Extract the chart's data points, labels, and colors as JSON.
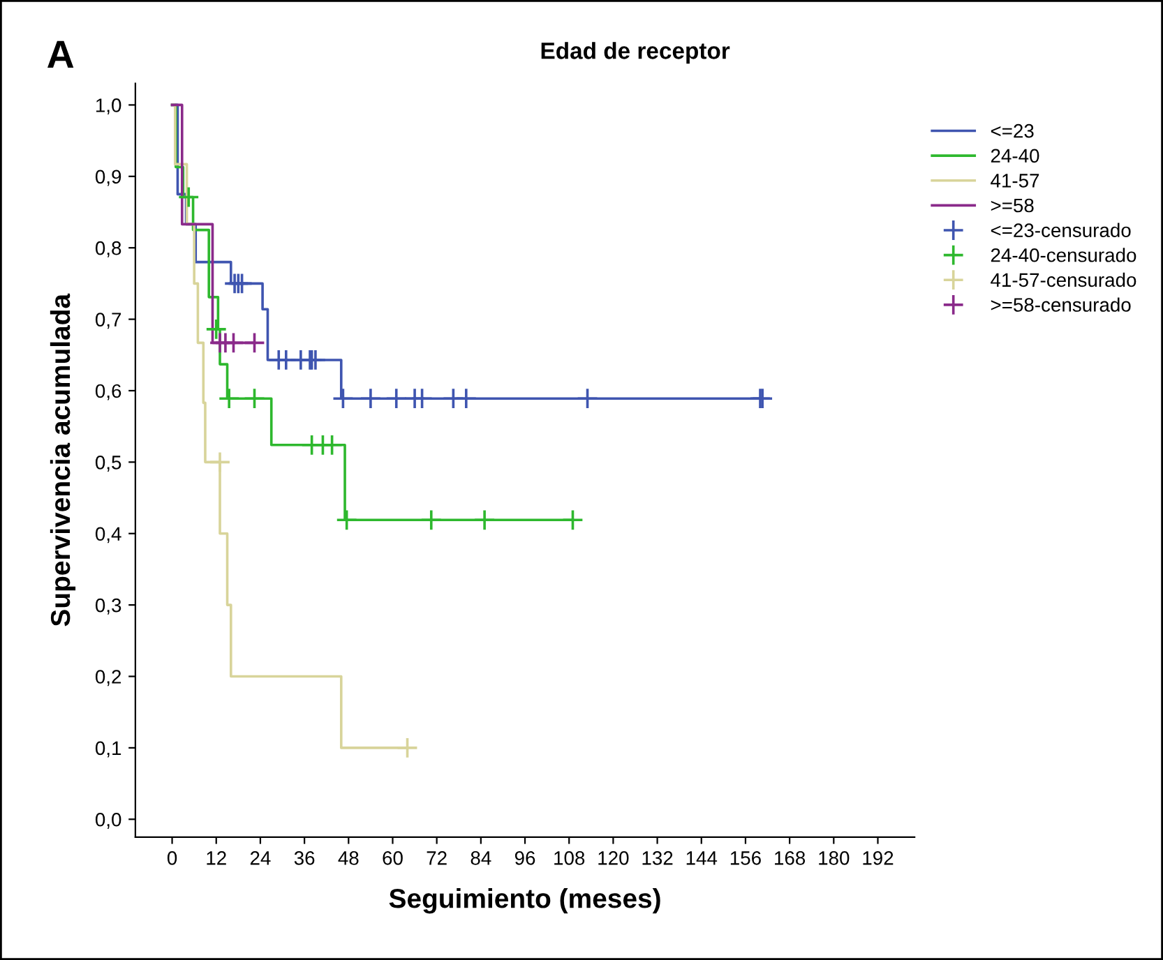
{
  "chart_data": {
    "type": "step",
    "title": "Edad de receptor",
    "xlabel": "Seguimiento (meses)",
    "ylabel": "Supervivencia acumulada",
    "annotations": [
      "A"
    ],
    "xlim": [
      -10,
      202
    ],
    "xticks": [
      0,
      12,
      24,
      36,
      48,
      60,
      72,
      84,
      96,
      108,
      120,
      132,
      144,
      156,
      168,
      180,
      192
    ],
    "ylim": [
      -0.025,
      1.03
    ],
    "yticks": [
      {
        "value": 0.0,
        "label": "0,0"
      },
      {
        "value": 0.1,
        "label": "0,1"
      },
      {
        "value": 0.2,
        "label": "0,2"
      },
      {
        "value": 0.3,
        "label": "0,3"
      },
      {
        "value": 0.4,
        "label": "0,4"
      },
      {
        "value": 0.5,
        "label": "0,5"
      },
      {
        "value": 0.6,
        "label": "0,6"
      },
      {
        "value": 0.7,
        "label": "0,7"
      },
      {
        "value": 0.8,
        "label": "0,8"
      },
      {
        "value": 0.9,
        "label": "0,9"
      },
      {
        "value": 1.0,
        "label": "1,0"
      }
    ],
    "grid": false,
    "legend": "right",
    "series": [
      {
        "name": "<=23",
        "color": "#3f55b0",
        "x": [
          0,
          1.5,
          3.8,
          6.4,
          16,
          24.6,
          26,
          46,
          160.6
        ],
        "values": [
          1,
          0.875,
          0.833,
          0.78,
          0.75,
          0.714,
          0.643,
          0.589,
          0.589
        ]
      },
      {
        "name": "24-40",
        "color": "#2eb82e",
        "x": [
          0,
          1,
          3,
          5.7,
          10,
          12.5,
          13,
          15,
          27,
          47,
          109
        ],
        "values": [
          1,
          0.913,
          0.871,
          0.825,
          0.731,
          0.686,
          0.637,
          0.589,
          0.524,
          0.419,
          0.419
        ]
      },
      {
        "name": "41-57",
        "color": "#d8d49a",
        "x": [
          0,
          0.8,
          4,
          6,
          7,
          8.5,
          9,
          13,
          15,
          16,
          46,
          64
        ],
        "values": [
          1,
          0.917,
          0.833,
          0.75,
          0.667,
          0.583,
          0.5,
          0.4,
          0.3,
          0.2,
          0.1,
          0.1
        ]
      },
      {
        "name": ">=58",
        "color": "#8a2a8a",
        "x": [
          0,
          2.7,
          11,
          22.4
        ],
        "values": [
          1,
          0.833,
          0.667,
          0.667
        ]
      },
      {
        "name": "<=23-censurado",
        "type": "scatter",
        "marker": "cross",
        "color": "#3f55b0",
        "x": [
          17,
          18,
          19,
          29,
          31,
          35,
          37.5,
          38,
          39,
          46.5,
          54,
          61,
          66,
          68,
          76.5,
          80,
          113,
          160,
          160.6
        ],
        "values": [
          0.75,
          0.75,
          0.75,
          0.643,
          0.643,
          0.643,
          0.643,
          0.643,
          0.643,
          0.589,
          0.589,
          0.589,
          0.589,
          0.589,
          0.589,
          0.589,
          0.589,
          0.589,
          0.589
        ]
      },
      {
        "name": "24-40-censurado",
        "type": "scatter",
        "marker": "cross",
        "color": "#2eb82e",
        "x": [
          4.5,
          12,
          15.5,
          22.4,
          38,
          41,
          43.5,
          47.5,
          70.5,
          85,
          109
        ],
        "values": [
          0.871,
          0.686,
          0.589,
          0.589,
          0.524,
          0.524,
          0.524,
          0.419,
          0.419,
          0.419,
          0.419
        ]
      },
      {
        "name": "41-57-censurado",
        "type": "scatter",
        "marker": "cross",
        "color": "#d8d49a",
        "x": [
          13,
          64
        ],
        "values": [
          0.5,
          0.1
        ]
      },
      {
        "name": ">=58-censurado",
        "type": "scatter",
        "marker": "cross",
        "color": "#8a2a8a",
        "x": [
          13,
          14.5,
          16.7,
          22.4
        ],
        "values": [
          0.667,
          0.667,
          0.667,
          0.667
        ]
      }
    ]
  }
}
